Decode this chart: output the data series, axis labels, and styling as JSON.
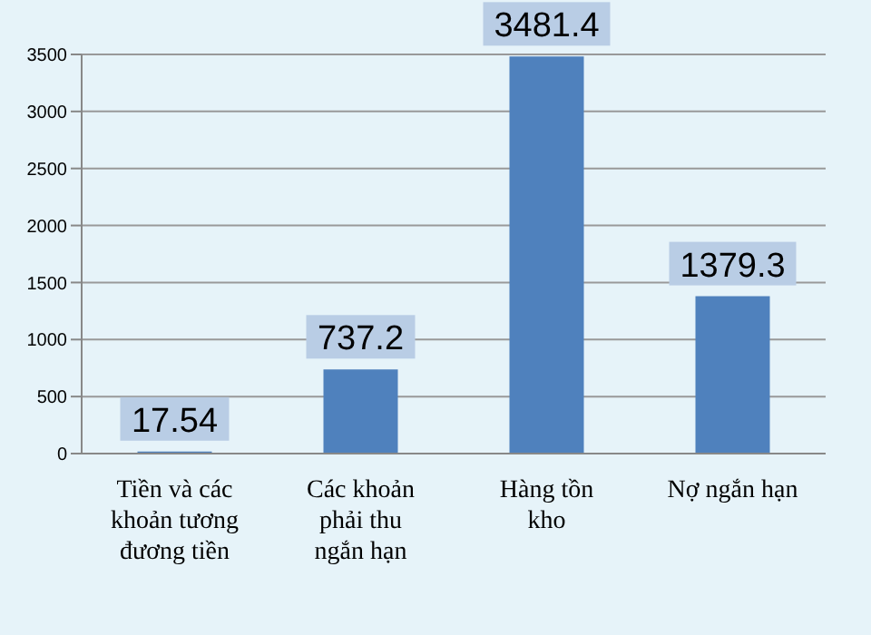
{
  "chart_data": {
    "type": "bar",
    "categories": [
      "Tiền và các khoản tương đương tiền",
      "Các khoản phải thu ngắn hạn",
      "Hàng tồn kho",
      "Nợ ngắn hạn"
    ],
    "values": [
      17.54,
      737.2,
      3481.4,
      1379.3
    ],
    "color": "#4f81bd",
    "ylim": [
      0,
      3500
    ],
    "yticks": [
      0,
      500,
      1000,
      1500,
      2000,
      2500,
      3000,
      3500
    ],
    "grid": "y",
    "data_labels": true
  }
}
